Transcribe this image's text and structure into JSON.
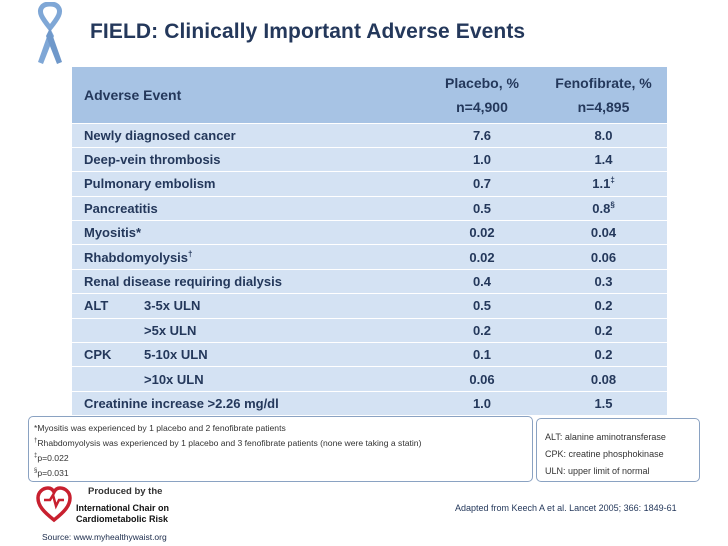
{
  "title": "FIELD: Clinically Important Adverse Events",
  "table": {
    "header": {
      "event": "Adverse Event",
      "placebo": "Placebo, %",
      "placebo_n": "n=4,900",
      "fenofibrate": "Fenofibrate, %",
      "fenofibrate_n": "n=4,895"
    },
    "rows": [
      {
        "event": "Newly diagnosed cancer",
        "sup": "",
        "lab": "",
        "sub": "",
        "placebo": "7.6",
        "fenofibrate": "8.0",
        "fsup": ""
      },
      {
        "event": "Deep-vein thrombosis",
        "sup": "",
        "lab": "",
        "sub": "",
        "placebo": "1.0",
        "fenofibrate": "1.4",
        "fsup": ""
      },
      {
        "event": "Pulmonary embolism",
        "sup": "",
        "lab": "",
        "sub": "",
        "placebo": "0.7",
        "fenofibrate": "1.1",
        "fsup": "‡"
      },
      {
        "event": "Pancreatitis",
        "sup": "",
        "lab": "",
        "sub": "",
        "placebo": "0.5",
        "fenofibrate": "0.8",
        "fsup": "§"
      },
      {
        "event": "Myositis*",
        "sup": "",
        "lab": "",
        "sub": "",
        "placebo": "0.02",
        "fenofibrate": "0.04",
        "fsup": ""
      },
      {
        "event": "Rhabdomyolysis",
        "sup": "†",
        "lab": "",
        "sub": "",
        "placebo": "0.02",
        "fenofibrate": "0.06",
        "fsup": ""
      },
      {
        "event": "Renal disease requiring dialysis",
        "sup": "",
        "lab": "",
        "sub": "",
        "placebo": "0.4",
        "fenofibrate": "0.3",
        "fsup": ""
      },
      {
        "event": "",
        "sup": "",
        "lab": "ALT",
        "sub": "3-5x ULN",
        "placebo": "0.5",
        "fenofibrate": "0.2",
        "fsup": ""
      },
      {
        "event": "",
        "sup": "",
        "lab": "",
        "sub": ">5x ULN",
        "placebo": "0.2",
        "fenofibrate": "0.2",
        "fsup": ""
      },
      {
        "event": "",
        "sup": "",
        "lab": "CPK",
        "sub": "5-10x ULN",
        "placebo": "0.1",
        "fenofibrate": "0.2",
        "fsup": ""
      },
      {
        "event": "",
        "sup": "",
        "lab": "",
        "sub": ">10x ULN",
        "placebo": "0.06",
        "fenofibrate": "0.08",
        "fsup": ""
      },
      {
        "event": "Creatinine increase >2.26 mg/dl",
        "sup": "",
        "lab": "",
        "sub": "",
        "placebo": "1.0",
        "fenofibrate": "1.5",
        "fsup": ""
      }
    ]
  },
  "footnotes": {
    "myositis": "*Myositis was experienced by 1 placebo and 2 fenofibrate patients",
    "rhabdo_mark": "†",
    "rhabdo": "Rhabdomyolysis was experienced by 1 placebo and 3 fenofibrate patients (none were taking a statin)",
    "p1_mark": "‡",
    "p1": "p=0.022",
    "p2_mark": "§",
    "p2": "p=0.031"
  },
  "abbreviations": [
    "ALT: alanine aminotransferase",
    "CPK: creatine phosphokinase",
    "ULN: upper limit of normal"
  ],
  "logo": {
    "line1": "Produced by the",
    "line2": "International Chair on",
    "line3": "Cardiometabolic Risk"
  },
  "source": "Source: www.myhealthywaist.org",
  "citation": "Adapted from Keech A et al. Lancet 2005; 366: 1849-61",
  "colors": {
    "title": "#24385b",
    "header_bg": "#a7c3e4",
    "row_bg": "#d4e2f3",
    "ribbon": "#7fa7d6",
    "heart": "#c8202f"
  }
}
